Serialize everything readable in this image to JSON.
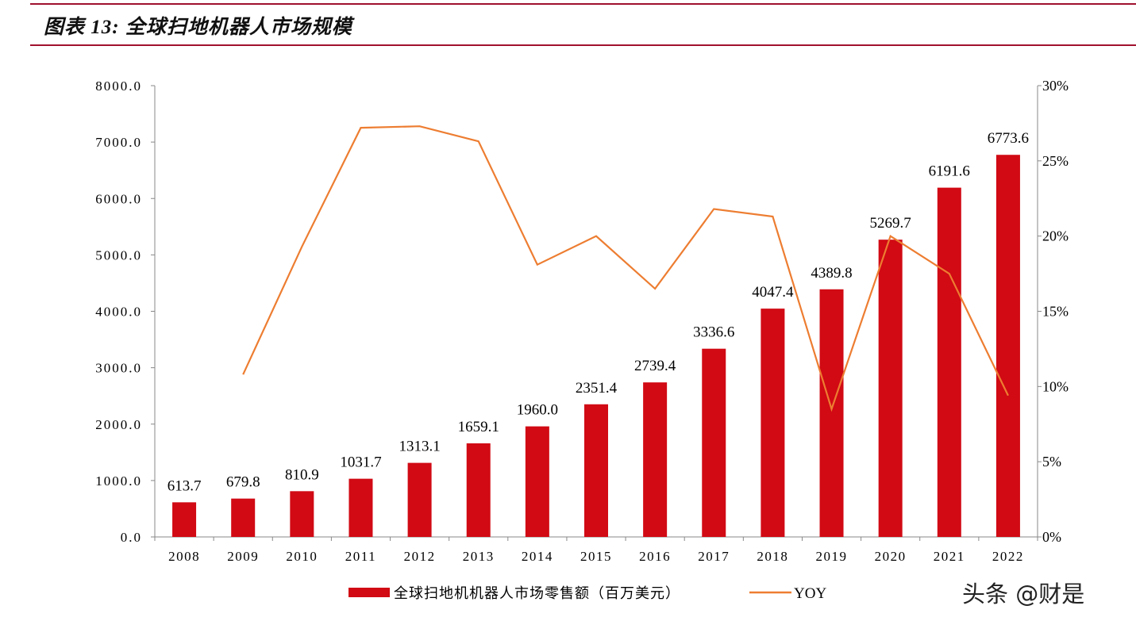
{
  "title": "图表 13:  全球扫地机器人市场规模",
  "watermark": "头条 @财是",
  "chart_data": {
    "type": "bar+line",
    "categories": [
      "2008",
      "2009",
      "2010",
      "2011",
      "2012",
      "2013",
      "2014",
      "2015",
      "2016",
      "2017",
      "2018",
      "2019",
      "2020",
      "2021",
      "2022"
    ],
    "series": [
      {
        "name": "全球扫地机机器人市场零售额（百万美元）",
        "type": "bar",
        "axis": "left",
        "color": "#d10a14",
        "values": [
          613.7,
          679.8,
          810.9,
          1031.7,
          1313.1,
          1659.1,
          1960.0,
          2351.4,
          2739.4,
          3336.6,
          4047.4,
          4389.8,
          5269.7,
          6191.6,
          6773.6
        ],
        "labels": [
          "613.7",
          "679.8",
          "810.9",
          "1031.7",
          "1313.1",
          "1659.1",
          "1960.0",
          "2351.4",
          "2739.4",
          "3336.6",
          "4047.4",
          "4389.8",
          "5269.7",
          "6191.6",
          "6773.6"
        ]
      },
      {
        "name": "YOY",
        "type": "line",
        "axis": "right",
        "color": "#ed7d31",
        "values": [
          null,
          10.8,
          19.3,
          27.2,
          27.3,
          26.3,
          18.1,
          20.0,
          16.5,
          21.8,
          21.3,
          8.5,
          20.0,
          17.5,
          9.4
        ]
      }
    ],
    "yleft": {
      "ylim": [
        0,
        8000
      ],
      "ticks": [
        "0.0",
        "1000.0",
        "2000.0",
        "3000.0",
        "4000.0",
        "5000.0",
        "6000.0",
        "7000.0",
        "8000.0"
      ]
    },
    "yright": {
      "ylim": [
        0,
        30
      ],
      "ticks": [
        "0%",
        "5%",
        "10%",
        "15%",
        "20%",
        "25%",
        "30%"
      ]
    },
    "legend": "bottom",
    "grid": false
  }
}
